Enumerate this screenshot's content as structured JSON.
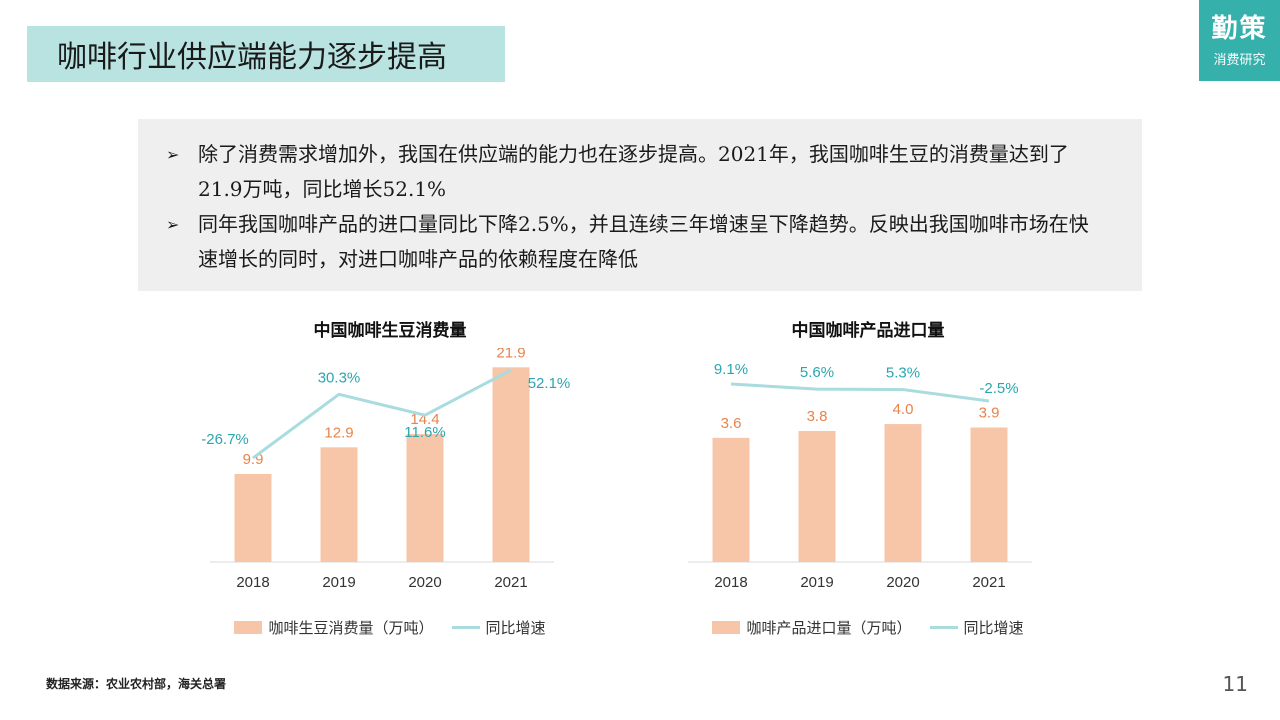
{
  "page": {
    "title": "咖啡行业供应端能力逐步提高",
    "brand_main": "勤策",
    "brand_sub": "消费研究",
    "bullets": [
      "除了消费需求增加外，我国在供应端的能力也在逐步提高。2021年，我国咖啡生豆的消费量达到了21.9万吨，同比增长52.1%",
      "同年我国咖啡产品的进口量同比下降2.5%，并且连续三年增速呈下降趋势。反映出我国咖啡市场在快速增长的同时，对进口咖啡产品的依赖程度在降低"
    ],
    "bullet_glyph": "➢",
    "footnote": "数据来源：农业农村部，海关总署",
    "page_number": "11"
  },
  "colors": {
    "bar": "#f7c5a8",
    "bar_label": "#e8834a",
    "line": "#a8dcdf",
    "line_label": "#2aa6b0",
    "title_bg": "#b9e3e1",
    "brand_bg": "#35b0ab"
  },
  "chart_data": [
    {
      "type": "bar",
      "title": "中国咖啡生豆消费量",
      "categories": [
        "2018",
        "2019",
        "2020",
        "2021"
      ],
      "series": [
        {
          "name": "咖啡生豆消费量（万吨）",
          "type": "bar",
          "values": [
            9.9,
            12.9,
            14.4,
            21.9
          ],
          "labels": [
            "9.9",
            "12.9",
            "14.4",
            "21.9"
          ]
        },
        {
          "name": "同比增速",
          "type": "line",
          "values": [
            -26.7,
            30.3,
            11.6,
            52.1
          ],
          "labels": [
            "-26.7%",
            "30.3%",
            "11.6%",
            "52.1%"
          ]
        }
      ],
      "legend_position": "bottom"
    },
    {
      "type": "bar",
      "title": "中国咖啡产品进口量",
      "categories": [
        "2018",
        "2019",
        "2020",
        "2021"
      ],
      "series": [
        {
          "name": "咖啡产品进口量（万吨）",
          "type": "bar",
          "values": [
            3.6,
            3.8,
            4.0,
            3.9
          ],
          "labels": [
            "3.6",
            "3.8",
            "4.0",
            "3.9"
          ]
        },
        {
          "name": "同比增速",
          "type": "line",
          "values": [
            9.1,
            5.6,
            5.3,
            -2.5
          ],
          "labels": [
            "9.1%",
            "5.6%",
            "5.3%",
            "-2.5%"
          ]
        }
      ],
      "legend_position": "bottom"
    }
  ]
}
